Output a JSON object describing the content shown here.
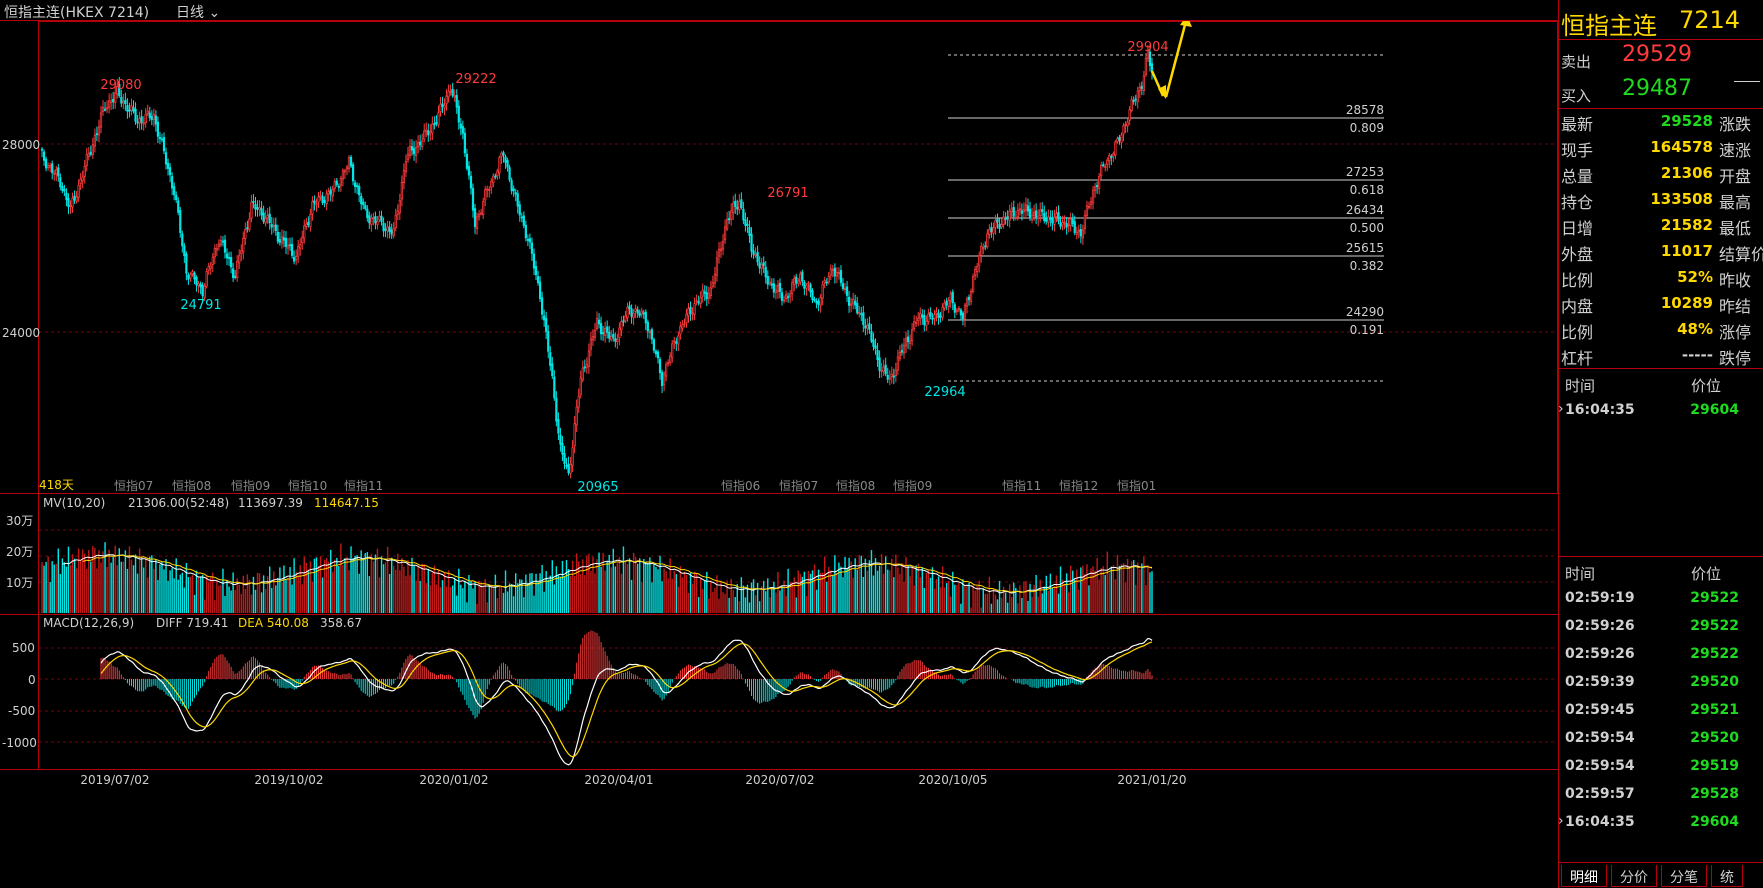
{
  "header": {
    "title": "恒指主连(HKEX 7214)",
    "period": "日线"
  },
  "main": {
    "y_ticks": [
      "28000",
      "24000"
    ],
    "day_count": "418天",
    "peaks": [
      "29080",
      "29222",
      "26791",
      "29904"
    ],
    "troughs": [
      "24791",
      "20965",
      "22964"
    ],
    "fib_values": [
      "28578",
      "27253",
      "26434",
      "25615",
      "24290"
    ],
    "fib_ratios": [
      "0.809",
      "0.618",
      "0.500",
      "0.382",
      "0.191"
    ],
    "month_labels": [
      "恒指07",
      "恒指08",
      "恒指09",
      "恒指10",
      "恒指11",
      "恒指06",
      "恒指07",
      "恒指08",
      "恒指09",
      "恒指11",
      "恒指12",
      "恒指01"
    ]
  },
  "volume": {
    "title": "MV(10,20)",
    "v1": "21306.00(52:48)",
    "v2": "113697.39",
    "v3": "114647.15",
    "y_ticks": [
      "30万",
      "20万",
      "10万"
    ]
  },
  "macd": {
    "title": "MACD(12,26,9)",
    "diff": "DIFF 719.41",
    "dea": "DEA 540.08",
    "macd": "358.67",
    "y_ticks": [
      "500",
      "0",
      "-500",
      "-1000"
    ]
  },
  "x_axis": [
    "2019/07/02",
    "2019/10/02",
    "2020/01/02",
    "2020/04/01",
    "2020/07/02",
    "2020/10/05",
    "2021/01/20"
  ],
  "sidebar": {
    "name": "恒指主连",
    "code": "7214",
    "sell_label": "卖出",
    "sell_value": "29529",
    "buy_label": "买入",
    "buy_value": "29487",
    "stats": [
      {
        "k": "最新",
        "v": "29528",
        "k2": "涨跌",
        "color": "green"
      },
      {
        "k": "现手",
        "v": "164578",
        "k2": "速涨",
        "color": "yellow"
      },
      {
        "k": "总量",
        "v": "21306",
        "k2": "开盘",
        "color": "yellow"
      },
      {
        "k": "持仓",
        "v": "133508",
        "k2": "最高",
        "color": "yellow"
      },
      {
        "k": "日增",
        "v": "21582",
        "k2": "最低",
        "color": "yellow"
      },
      {
        "k": "外盘",
        "v": "11017",
        "k2": "结算价",
        "color": "yellow"
      },
      {
        "k": "比例",
        "v": "52%",
        "k2": "昨收",
        "color": "yellow"
      },
      {
        "k": "内盘",
        "v": "10289",
        "k2": "昨结",
        "color": "yellow"
      },
      {
        "k": "比例",
        "v": "48%",
        "k2": "涨停",
        "color": "yellow"
      },
      {
        "k": "杠杆",
        "v": "-----",
        "k2": "跌停",
        "color": "white"
      }
    ],
    "ticks_header": {
      "time": "时间",
      "price": "价位"
    },
    "ticks_top": [
      {
        "time": "16:04:35",
        "price": "29604"
      }
    ],
    "ticks_bottom": [
      {
        "time": "02:59:19",
        "price": "29522"
      },
      {
        "time": "02:59:26",
        "price": "29522"
      },
      {
        "time": "02:59:26",
        "price": "29522"
      },
      {
        "time": "02:59:39",
        "price": "29520"
      },
      {
        "time": "02:59:45",
        "price": "29521"
      },
      {
        "time": "02:59:54",
        "price": "29520"
      },
      {
        "time": "02:59:54",
        "price": "29519"
      },
      {
        "time": "02:59:57",
        "price": "29528"
      },
      {
        "time": "16:04:35",
        "price": "29604"
      }
    ],
    "tabs": [
      "明细",
      "分价",
      "分笔",
      "统"
    ]
  },
  "colors": {
    "up": "#ff3b3b",
    "down": "#00e5e5",
    "grid": "#b3000c",
    "ma1": "#ffffff",
    "ma2": "#ffd800",
    "accent": "#ffd800",
    "green": "#1fdb1f"
  }
}
